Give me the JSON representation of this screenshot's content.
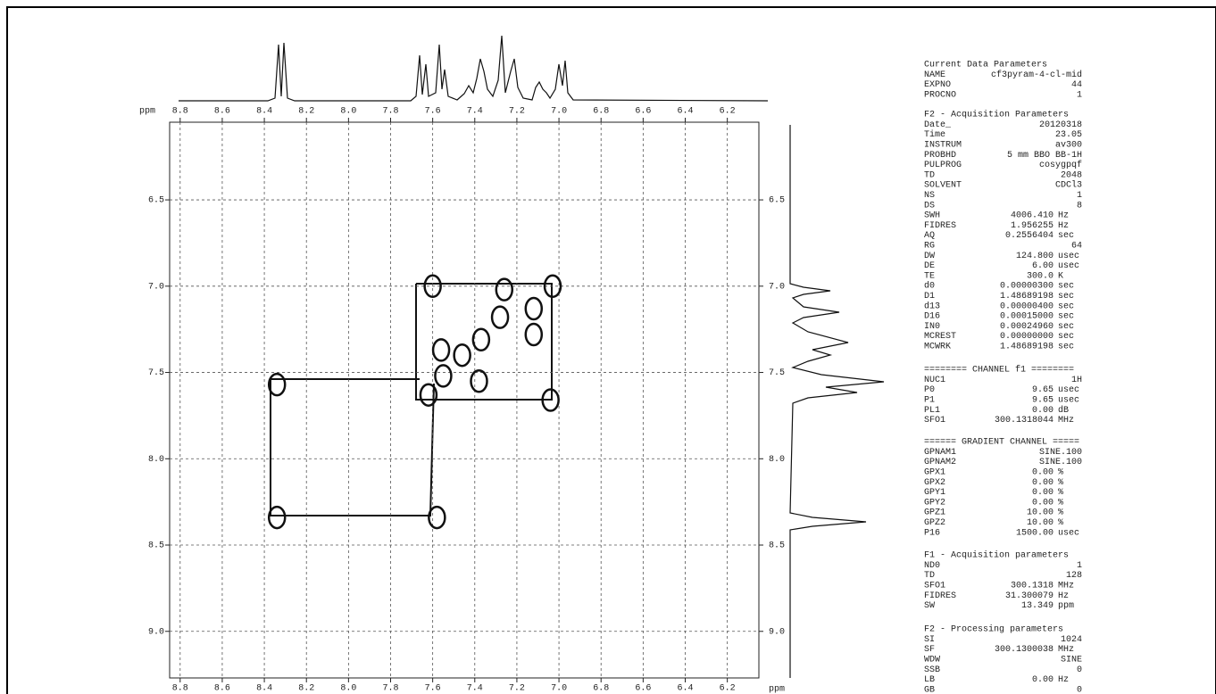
{
  "chart_data": {
    "type": "scatter",
    "xlabel": "ppm",
    "x": [
      8.34,
      8.34,
      7.58,
      7.62,
      7.55,
      7.6,
      7.03,
      7.04,
      7.46,
      7.37,
      7.28,
      7.26,
      7.12,
      7.12,
      7.38,
      7.56
    ],
    "values": [
      8.34,
      7.57,
      8.34,
      7.63,
      7.52,
      7.0,
      7.0,
      7.66,
      7.4,
      7.31,
      7.18,
      7.02,
      7.13,
      7.28,
      7.55,
      7.37
    ],
    "color": "#111111",
    "xlim": [
      8.85,
      6.05
    ],
    "xticks": [
      8.8,
      8.6,
      8.4,
      8.2,
      {
        "value": 8,
        "label": "8.0"
      },
      7.8,
      7.6,
      7.4,
      7.2,
      {
        "value": 7,
        "label": "7.0"
      },
      6.8,
      6.6,
      6.4,
      6.2
    ],
    "ylim": [
      6.05,
      9.27
    ],
    "yticks": [
      6.5,
      {
        "value": 7,
        "label": "7.0"
      },
      7.5,
      {
        "value": 8,
        "label": "8.0"
      },
      8.5,
      {
        "value": 9,
        "label": "9.0"
      }
    ],
    "grid": true
  },
  "parameters": [
    {
      "title": "Current Data Parameters",
      "rows": [
        {
          "name": "NAME",
          "value": "cf3pyram-4-cl-mid"
        },
        {
          "name": "EXPNO",
          "value": "44"
        },
        {
          "name": "PROCNO",
          "value": "1"
        }
      ]
    },
    {
      "title": "F2 - Acquisition Parameters",
      "rows": [
        {
          "name": "Date_",
          "value": "20120318"
        },
        {
          "name": "Time",
          "value": "23.05"
        },
        {
          "name": "INSTRUM",
          "value": "av300"
        },
        {
          "name": "PROBHD",
          "value": "5 mm BBO BB-1H"
        },
        {
          "name": "PULPROG",
          "value": "cosygpqf"
        },
        {
          "name": "TD",
          "value": "2048"
        },
        {
          "name": "SOLVENT",
          "value": "CDCl3"
        },
        {
          "name": "NS",
          "value": "1"
        },
        {
          "name": "DS",
          "value": "8"
        },
        {
          "name": "SWH",
          "value": "4006.410",
          "unit": "Hz"
        },
        {
          "name": "FIDRES",
          "value": "1.956255",
          "unit": "Hz"
        },
        {
          "name": "AQ",
          "value": "0.2556404",
          "unit": "sec"
        },
        {
          "name": "RG",
          "value": "64"
        },
        {
          "name": "DW",
          "value": "124.800",
          "unit": "usec"
        },
        {
          "name": "DE",
          "value": "6.00",
          "unit": "usec"
        },
        {
          "name": "TE",
          "value": "300.0",
          "unit": "K"
        },
        {
          "name": "d0",
          "value": "0.00000300",
          "unit": "sec"
        },
        {
          "name": "D1",
          "value": "1.48689198",
          "unit": "sec"
        },
        {
          "name": "d13",
          "value": "0.00000400",
          "unit": "sec"
        },
        {
          "name": "D16",
          "value": "0.00015000",
          "unit": "sec"
        },
        {
          "name": "IN0",
          "value": "0.00024960",
          "unit": "sec"
        },
        {
          "name": "MCREST",
          "value": "0.00000000",
          "unit": "sec"
        },
        {
          "name": "MCWRK",
          "value": "1.48689198",
          "unit": "sec"
        }
      ]
    },
    {
      "title": "======== CHANNEL f1 ========",
      "rows": [
        {
          "name": "NUC1",
          "value": "1H"
        },
        {
          "name": "P0",
          "value": "9.65",
          "unit": "usec"
        },
        {
          "name": "P1",
          "value": "9.65",
          "unit": "usec"
        },
        {
          "name": "PL1",
          "value": "0.00",
          "unit": "dB"
        },
        {
          "name": "SFO1",
          "value": "300.1318044",
          "unit": "MHz"
        }
      ]
    },
    {
      "title": "====== GRADIENT CHANNEL =====",
      "rows": [
        {
          "name": "GPNAM1",
          "value": "SINE.100"
        },
        {
          "name": "GPNAM2",
          "value": "SINE.100"
        },
        {
          "name": "GPX1",
          "value": "0.00",
          "unit": "%"
        },
        {
          "name": "GPX2",
          "value": "0.00",
          "unit": "%"
        },
        {
          "name": "GPY1",
          "value": "0.00",
          "unit": "%"
        },
        {
          "name": "GPY2",
          "value": "0.00",
          "unit": "%"
        },
        {
          "name": "GPZ1",
          "value": "10.00",
          "unit": "%"
        },
        {
          "name": "GPZ2",
          "value": "10.00",
          "unit": "%"
        },
        {
          "name": "P16",
          "value": "1500.00",
          "unit": "usec"
        }
      ]
    },
    {
      "title": "F1 - Acquisition parameters",
      "rows": [
        {
          "name": "ND0",
          "value": "1"
        },
        {
          "name": "TD",
          "value": "128"
        },
        {
          "name": "SFO1",
          "value": "300.1318",
          "unit": "MHz"
        },
        {
          "name": "FIDRES",
          "value": "31.300079",
          "unit": "Hz"
        },
        {
          "name": "SW",
          "value": "13.349",
          "unit": "ppm"
        }
      ]
    },
    {
      "title": "F2 - Processing parameters",
      "rows": [
        {
          "name": "SI",
          "value": "1024"
        },
        {
          "name": "SF",
          "value": "300.1300038",
          "unit": "MHz"
        },
        {
          "name": "WDW",
          "value": "SINE"
        },
        {
          "name": "SSB",
          "value": "0"
        },
        {
          "name": "LB",
          "value": "0.00",
          "unit": "Hz"
        },
        {
          "name": "GB",
          "value": "0"
        }
      ]
    }
  ]
}
